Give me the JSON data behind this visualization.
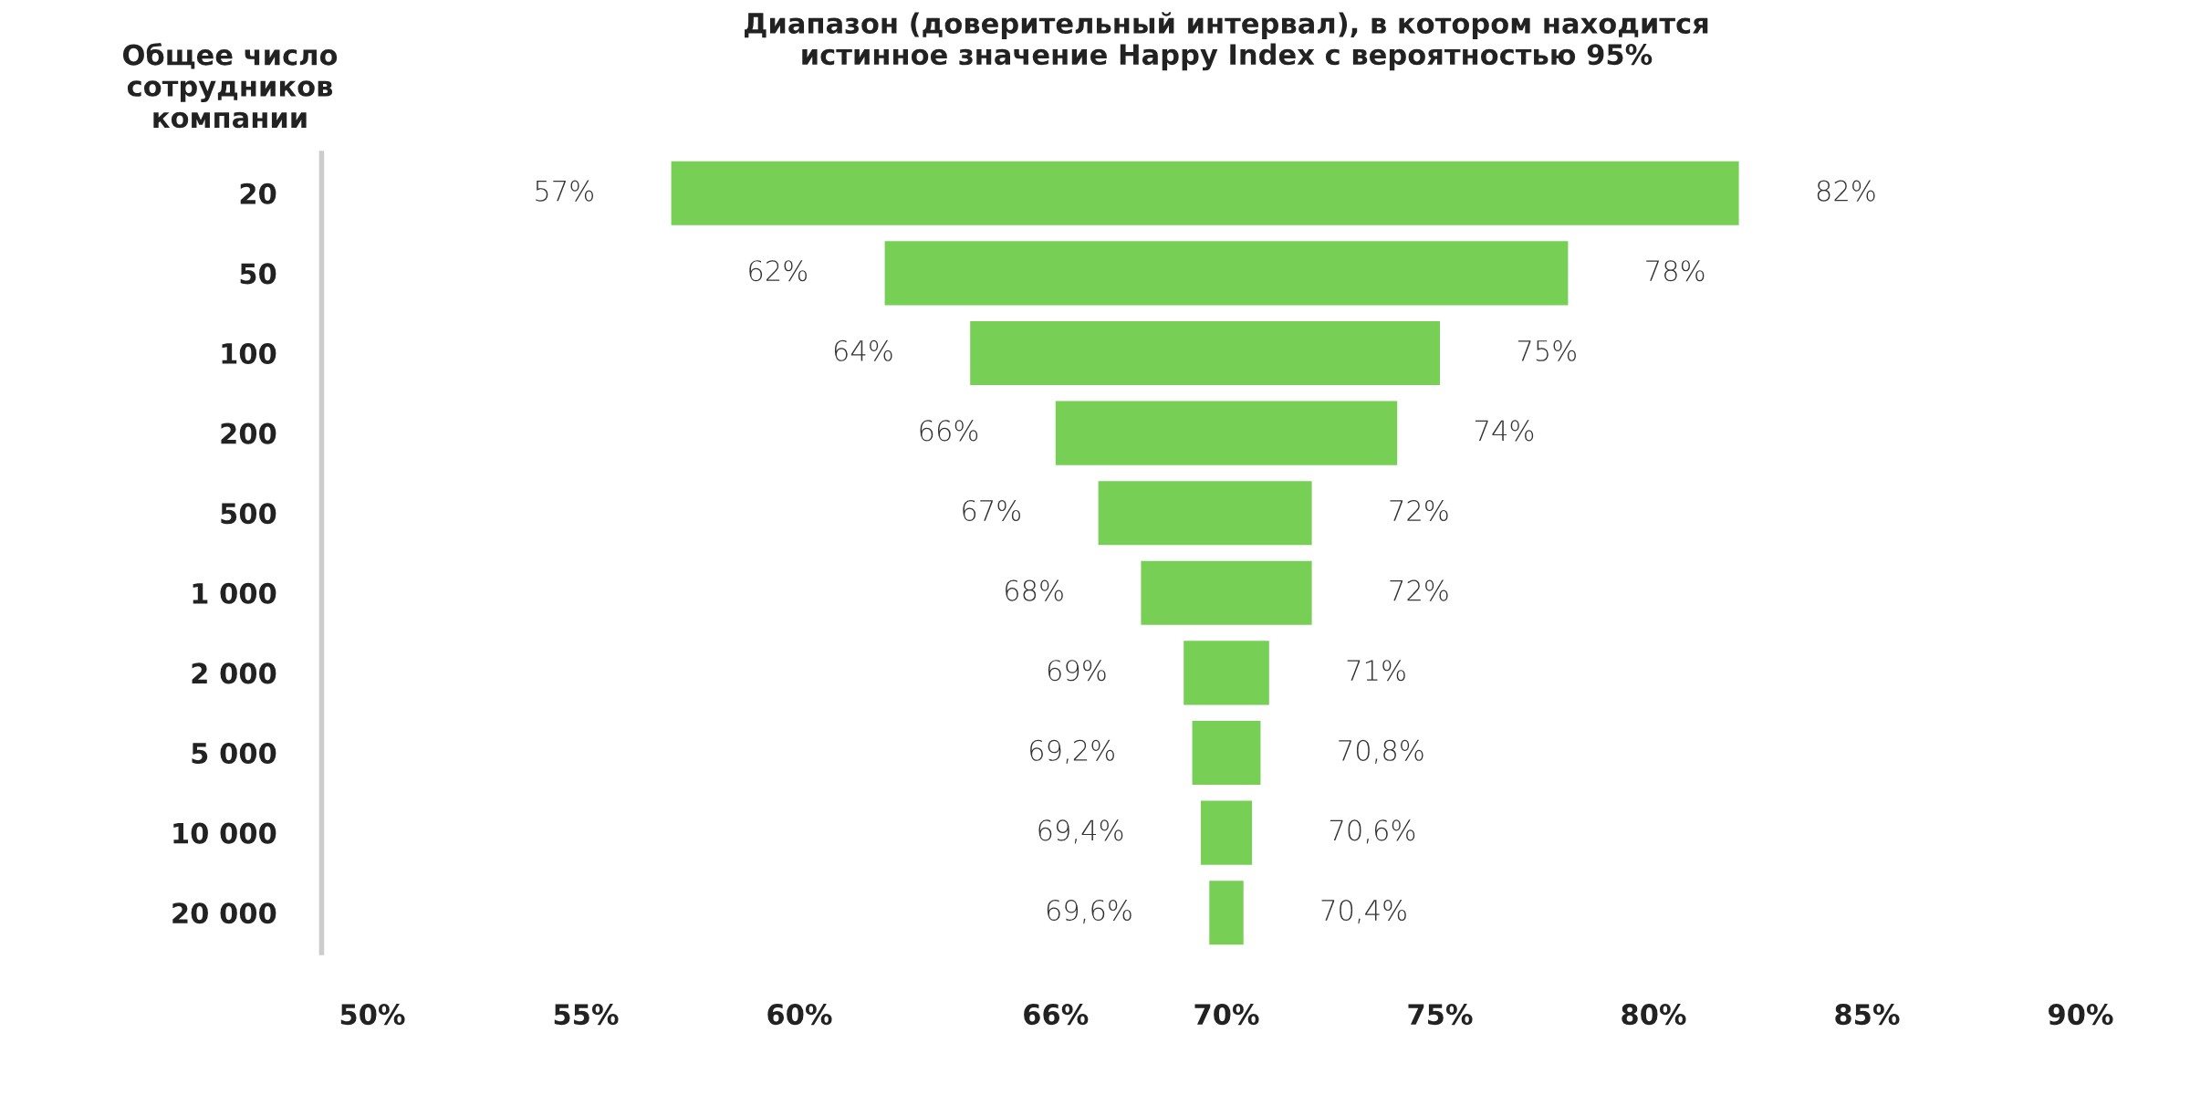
{
  "chart_data": {
    "type": "bar",
    "orientation": "horizontal",
    "title": "Диапазон (доверительный интервал), в котором находится\nистинное значение Happy Index с вероятностью 95%",
    "ylabel": "Общее число\nсотрудников\nкомпании",
    "categories": [
      "20",
      "50",
      "100",
      "200",
      "500",
      "1 000",
      "2 000",
      "5 000",
      "10 000",
      "20 000"
    ],
    "base": [
      57,
      62,
      64,
      66,
      67,
      68,
      69,
      69.2,
      69.4,
      69.6
    ],
    "values": [
      25,
      16,
      11,
      8,
      5,
      4,
      2,
      1.6,
      1.2,
      0.8
    ],
    "color": "#77cf55",
    "xlim": [
      50,
      90
    ],
    "xticks": [
      {
        "value": 50,
        "label": "50%"
      },
      {
        "value": 55,
        "label": "55%"
      },
      {
        "value": 60,
        "label": "60%"
      },
      {
        "value": 66,
        "label": "66%"
      },
      {
        "value": 70,
        "label": "70%"
      },
      {
        "value": 75,
        "label": "75%"
      },
      {
        "value": 80,
        "label": "80%"
      },
      {
        "value": 85,
        "label": "85%"
      },
      {
        "value": 90,
        "label": "90%"
      }
    ],
    "grid": false,
    "legend": false,
    "annotations": [
      {
        "text": "57%",
        "x": 57,
        "y": "20"
      },
      {
        "text": "82%",
        "x": 82,
        "y": "20"
      },
      {
        "text": "62%",
        "x": 62,
        "y": "50"
      },
      {
        "text": "78%",
        "x": 78,
        "y": "50"
      },
      {
        "text": "64%",
        "x": 64,
        "y": "100"
      },
      {
        "text": "75%",
        "x": 75,
        "y": "100"
      },
      {
        "text": "66%",
        "x": 66,
        "y": "200"
      },
      {
        "text": "74%",
        "x": 74,
        "y": "200"
      },
      {
        "text": "67%",
        "x": 67,
        "y": "500"
      },
      {
        "text": "72%",
        "x": 72,
        "y": "500"
      },
      {
        "text": "68%",
        "x": 68,
        "y": "1 000"
      },
      {
        "text": "72%",
        "x": 72,
        "y": "1 000"
      },
      {
        "text": "69%",
        "x": 69,
        "y": "2 000"
      },
      {
        "text": "71%",
        "x": 71,
        "y": "2 000"
      },
      {
        "text": "69,2%",
        "x": 69.2,
        "y": "5 000"
      },
      {
        "text": "70,8%",
        "x": 70.8,
        "y": "5 000"
      },
      {
        "text": "69,4%",
        "x": 69.4,
        "y": "10 000"
      },
      {
        "text": "70,6%",
        "x": 70.6,
        "y": "10 000"
      },
      {
        "text": "69,6%",
        "x": 69.6,
        "y": "20 000"
      },
      {
        "text": "70,4%",
        "x": 70.4,
        "y": "20 000"
      }
    ]
  }
}
